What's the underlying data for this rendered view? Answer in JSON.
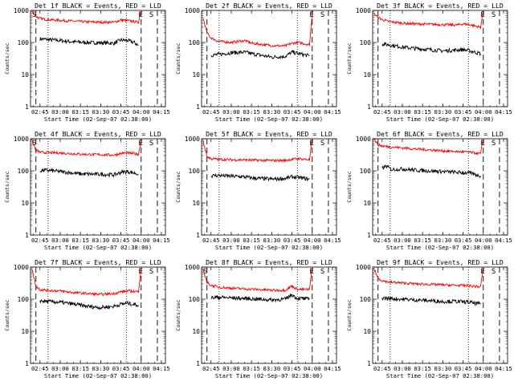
{
  "chart_data": [
    {
      "title": "Det 1f BLACK = Events, RED = LLD",
      "type": "line",
      "ylabel": "Counts/sec",
      "xlabel": "Start Time (02-Sep-07 02:38:00)",
      "ylim": [
        1,
        1000
      ],
      "yscale": "log",
      "xlim": [
        "02:38",
        "04:18"
      ],
      "x_ticks": [
        "02:45",
        "03:00",
        "03:15",
        "03:30",
        "03:45",
        "04:00",
        "04:15"
      ],
      "y_ticks": [
        "1",
        "10",
        "100",
        "1000"
      ],
      "markers": [
        "S",
        "E",
        "S"
      ],
      "dashed_x": [
        "02:42",
        "04:00",
        "04:12"
      ],
      "dotted_x": [
        "02:51",
        "03:49"
      ],
      "series": [
        {
          "name": "BLACK",
          "color": "#000000",
          "x": [
            "02:45",
            "02:50",
            "03:00",
            "03:10",
            "03:20",
            "03:30",
            "03:40",
            "03:45",
            "03:50",
            "03:55",
            "03:58"
          ],
          "values": [
            130,
            125,
            115,
            105,
            100,
            98,
            95,
            120,
            115,
            100,
            80
          ]
        },
        {
          "name": "RED",
          "color": "#ff0000",
          "x": [
            "02:39",
            "02:42",
            "02:45",
            "02:50",
            "03:00",
            "03:10",
            "03:20",
            "03:30",
            "03:40",
            "03:45",
            "03:50",
            "03:58",
            "04:00"
          ],
          "values": [
            1000,
            650,
            560,
            520,
            490,
            460,
            440,
            430,
            430,
            500,
            480,
            430,
            1000
          ]
        }
      ]
    },
    {
      "title": "Det 2f BLACK = Events, RED = LLD",
      "type": "line",
      "ylabel": "Counts/sec",
      "xlabel": "Start Time (02-Sep-07 02:38:00)",
      "ylim": [
        1,
        1000
      ],
      "yscale": "log",
      "xlim": [
        "02:38",
        "04:18"
      ],
      "x_ticks": [
        "02:45",
        "03:00",
        "03:15",
        "03:30",
        "03:45",
        "04:00",
        "04:15"
      ],
      "y_ticks": [
        "1",
        "10",
        "100",
        "1000"
      ],
      "markers": [
        "E",
        "S"
      ],
      "dashed_x": [
        "02:42",
        "04:00",
        "04:12"
      ],
      "dotted_x": [
        "02:51",
        "03:49"
      ],
      "series": [
        {
          "name": "BLACK",
          "color": "#000000",
          "x": [
            "02:45",
            "02:50",
            "03:00",
            "03:10",
            "03:15",
            "03:30",
            "03:40",
            "03:45",
            "03:50",
            "03:58"
          ],
          "values": [
            40,
            42,
            48,
            50,
            45,
            35,
            37,
            50,
            45,
            38
          ]
        },
        {
          "name": "RED",
          "color": "#ff0000",
          "x": [
            "02:39",
            "02:42",
            "02:45",
            "02:50",
            "03:00",
            "03:10",
            "03:15",
            "03:30",
            "03:40",
            "03:45",
            "03:50",
            "03:58",
            "04:00"
          ],
          "values": [
            600,
            200,
            140,
            110,
            100,
            115,
            95,
            80,
            78,
            95,
            100,
            85,
            800
          ]
        }
      ]
    },
    {
      "title": "Det 3f BLACK = Events, RED = LLD",
      "type": "line",
      "ylabel": "Counts/sec",
      "xlabel": "Start Time (02-Sep-07 02:38:00)",
      "ylim": [
        1,
        1000
      ],
      "yscale": "log",
      "xlim": [
        "02:38",
        "04:18"
      ],
      "x_ticks": [
        "02:45",
        "03:00",
        "03:15",
        "03:30",
        "03:45",
        "04:00",
        "04:15"
      ],
      "y_ticks": [
        "1",
        "10",
        "100",
        "1000"
      ],
      "markers": [
        "E",
        "S"
      ],
      "dashed_x": [
        "02:42",
        "04:00",
        "04:12"
      ],
      "dotted_x": [
        "02:51",
        "03:49"
      ],
      "series": [
        {
          "name": "BLACK",
          "color": "#000000",
          "x": [
            "02:45",
            "02:50",
            "03:00",
            "03:10",
            "03:20",
            "03:30",
            "03:40",
            "03:45",
            "03:50",
            "03:58"
          ],
          "values": [
            90,
            85,
            72,
            65,
            60,
            55,
            58,
            60,
            55,
            45
          ]
        },
        {
          "name": "RED",
          "color": "#ff0000",
          "x": [
            "02:39",
            "02:42",
            "02:45",
            "02:50",
            "03:00",
            "03:10",
            "03:20",
            "03:30",
            "03:40",
            "03:45",
            "03:50",
            "03:58",
            "04:00"
          ],
          "values": [
            800,
            600,
            520,
            450,
            400,
            380,
            370,
            360,
            350,
            380,
            360,
            300,
            900
          ]
        }
      ]
    },
    {
      "title": "Det 4f BLACK = Events, RED = LLD",
      "type": "line",
      "ylabel": "Counts/sec",
      "xlabel": "Start Time (02-Sep-07 02:38:00)",
      "ylim": [
        1,
        1000
      ],
      "yscale": "log",
      "xlim": [
        "02:38",
        "04:18"
      ],
      "x_ticks": [
        "02:45",
        "03:00",
        "03:15",
        "03:30",
        "03:45",
        "04:00",
        "04:15"
      ],
      "y_ticks": [
        "1",
        "10",
        "100",
        "1000"
      ],
      "markers": [
        "S",
        "E",
        "S"
      ],
      "dashed_x": [
        "02:42",
        "04:00",
        "04:12"
      ],
      "dotted_x": [
        "02:51",
        "03:49"
      ],
      "series": [
        {
          "name": "BLACK",
          "color": "#000000",
          "x": [
            "02:45",
            "02:50",
            "03:00",
            "03:10",
            "03:15",
            "03:30",
            "03:40",
            "03:45",
            "03:50",
            "03:58"
          ],
          "values": [
            100,
            105,
            95,
            85,
            80,
            78,
            75,
            90,
            95,
            80
          ]
        },
        {
          "name": "RED",
          "color": "#ff0000",
          "x": [
            "02:39",
            "02:42",
            "02:45",
            "02:50",
            "03:00",
            "03:10",
            "03:15",
            "03:30",
            "03:40",
            "03:45",
            "03:50",
            "03:58",
            "04:00"
          ],
          "values": [
            900,
            450,
            380,
            370,
            360,
            340,
            330,
            320,
            310,
            350,
            360,
            330,
            900
          ]
        }
      ]
    },
    {
      "title": "Det 5f BLACK = Events, RED = LLD",
      "type": "line",
      "ylabel": "Counts/sec",
      "xlabel": "Start Time (02-Sep-07 02:38:00)",
      "ylim": [
        1,
        1000
      ],
      "yscale": "log",
      "xlim": [
        "02:38",
        "04:18"
      ],
      "x_ticks": [
        "02:45",
        "03:00",
        "03:15",
        "03:30",
        "03:45",
        "04:00",
        "04:15"
      ],
      "y_ticks": [
        "1",
        "10",
        "100",
        "1000"
      ],
      "markers": [
        "E",
        "S"
      ],
      "dashed_x": [
        "02:42",
        "04:00",
        "04:12"
      ],
      "dotted_x": [
        "02:51",
        "03:49"
      ],
      "series": [
        {
          "name": "BLACK",
          "color": "#000000",
          "x": [
            "02:45",
            "02:50",
            "03:00",
            "03:10",
            "03:15",
            "03:30",
            "03:40",
            "03:45",
            "03:50",
            "03:58"
          ],
          "values": [
            70,
            72,
            68,
            65,
            60,
            55,
            58,
            65,
            62,
            55
          ]
        },
        {
          "name": "RED",
          "color": "#ff0000",
          "x": [
            "02:39",
            "02:42",
            "02:45",
            "02:50",
            "03:00",
            "03:10",
            "03:15",
            "03:30",
            "03:40",
            "03:45",
            "03:50",
            "03:58",
            "04:00"
          ],
          "values": [
            900,
            280,
            240,
            230,
            220,
            220,
            215,
            210,
            210,
            230,
            240,
            220,
            1000
          ]
        }
      ]
    },
    {
      "title": "Det 6f BLACK = Events, RED = LLD",
      "type": "line",
      "ylabel": "Counts/sec",
      "xlabel": "Start Time (02-Sep-07 02:38:00)",
      "ylim": [
        1,
        1000
      ],
      "yscale": "log",
      "xlim": [
        "02:38",
        "04:18"
      ],
      "x_ticks": [
        "02:45",
        "03:00",
        "03:15",
        "03:30",
        "03:45",
        "04:00",
        "04:15"
      ],
      "y_ticks": [
        "1",
        "10",
        "100",
        "1000"
      ],
      "markers": [
        "E",
        "S"
      ],
      "dashed_x": [
        "02:42",
        "04:00",
        "04:12"
      ],
      "dotted_x": [
        "02:51",
        "03:49"
      ],
      "series": [
        {
          "name": "BLACK",
          "color": "#000000",
          "x": [
            "02:45",
            "02:48",
            "02:52",
            "03:00",
            "03:10",
            "03:20",
            "03:30",
            "03:40",
            "03:50",
            "03:58"
          ],
          "values": [
            120,
            140,
            110,
            115,
            105,
            100,
            95,
            90,
            85,
            70
          ]
        },
        {
          "name": "RED",
          "color": "#ff0000",
          "x": [
            "02:39",
            "02:42",
            "02:45",
            "02:50",
            "03:00",
            "03:10",
            "03:20",
            "03:30",
            "03:40",
            "03:50",
            "03:58",
            "04:00"
          ],
          "values": [
            1000,
            650,
            600,
            560,
            520,
            480,
            450,
            420,
            400,
            380,
            340,
            1000
          ]
        }
      ]
    },
    {
      "title": "Det 7f BLACK = Events, RED = LLD",
      "type": "line",
      "ylabel": "Counts/sec",
      "xlabel": "Start Time (02-Sep-07 02:38:00)",
      "ylim": [
        1,
        1000
      ],
      "yscale": "log",
      "xlim": [
        "02:38",
        "04:18"
      ],
      "x_ticks": [
        "02:45",
        "03:00",
        "03:15",
        "03:30",
        "03:45",
        "04:00",
        "04:15"
      ],
      "y_ticks": [
        "1",
        "10",
        "100",
        "1000"
      ],
      "markers": [
        "E",
        "S"
      ],
      "dashed_x": [
        "02:42",
        "04:00",
        "04:12"
      ],
      "dotted_x": [
        "02:51",
        "03:49"
      ],
      "series": [
        {
          "name": "BLACK",
          "color": "#000000",
          "x": [
            "02:45",
            "02:50",
            "03:00",
            "03:10",
            "03:20",
            "03:30",
            "03:40",
            "03:45",
            "03:50",
            "03:58"
          ],
          "values": [
            90,
            85,
            80,
            70,
            60,
            55,
            60,
            70,
            75,
            65
          ]
        },
        {
          "name": "RED",
          "color": "#ff0000",
          "x": [
            "02:39",
            "02:42",
            "02:45",
            "02:50",
            "03:00",
            "03:10",
            "03:20",
            "03:30",
            "03:40",
            "03:45",
            "03:50",
            "03:58",
            "04:00"
          ],
          "values": [
            900,
            250,
            200,
            190,
            180,
            160,
            150,
            140,
            150,
            170,
            180,
            170,
            1000
          ]
        }
      ]
    },
    {
      "title": "Det 8f BLACK = Events, RED = LLD",
      "type": "line",
      "ylabel": "Counts/sec",
      "xlabel": "Start Time (02-Sep-07 02:38:00)",
      "ylim": [
        1,
        1000
      ],
      "yscale": "log",
      "xlim": [
        "02:38",
        "04:18"
      ],
      "x_ticks": [
        "02:45",
        "03:00",
        "03:15",
        "03:30",
        "03:45",
        "04:00",
        "04:15"
      ],
      "y_ticks": [
        "1",
        "10",
        "100",
        "1000"
      ],
      "markers": [
        "S",
        "E",
        "S"
      ],
      "dashed_x": [
        "02:42",
        "04:00",
        "04:12"
      ],
      "dotted_x": [
        "02:51",
        "03:49"
      ],
      "series": [
        {
          "name": "BLACK",
          "color": "#000000",
          "x": [
            "02:45",
            "02:50",
            "03:00",
            "03:10",
            "03:20",
            "03:30",
            "03:40",
            "03:45",
            "03:48",
            "03:52",
            "03:58"
          ],
          "values": [
            110,
            115,
            110,
            105,
            100,
            95,
            100,
            140,
            110,
            105,
            100
          ]
        },
        {
          "name": "RED",
          "color": "#ff0000",
          "x": [
            "02:39",
            "02:42",
            "02:45",
            "02:50",
            "03:00",
            "03:10",
            "03:20",
            "03:30",
            "03:40",
            "03:45",
            "03:48",
            "03:52",
            "03:58",
            "04:00"
          ],
          "values": [
            900,
            330,
            270,
            240,
            220,
            210,
            200,
            190,
            190,
            260,
            210,
            200,
            200,
            1000
          ]
        }
      ]
    },
    {
      "title": "Det 9f BLACK = Events, RED = LLD",
      "type": "line",
      "ylabel": "Counts/sec",
      "xlabel": "Start Time (02-Sep-07 02:38:00)",
      "ylim": [
        1,
        1000
      ],
      "yscale": "log",
      "xlim": [
        "02:38",
        "04:18"
      ],
      "x_ticks": [
        "02:45",
        "03:00",
        "03:15",
        "03:30",
        "03:45",
        "04:00",
        "04:15"
      ],
      "y_ticks": [
        "1",
        "10",
        "100",
        "1000"
      ],
      "markers": [
        "E",
        "S"
      ],
      "dashed_x": [
        "02:42",
        "04:00",
        "04:12"
      ],
      "dotted_x": [
        "02:51",
        "03:49"
      ],
      "series": [
        {
          "name": "BLACK",
          "color": "#000000",
          "x": [
            "02:45",
            "02:50",
            "03:00",
            "03:10",
            "03:20",
            "03:30",
            "03:40",
            "03:50",
            "03:58"
          ],
          "values": [
            110,
            105,
            100,
            95,
            90,
            85,
            85,
            80,
            70
          ]
        },
        {
          "name": "RED",
          "color": "#ff0000",
          "x": [
            "02:39",
            "02:42",
            "02:45",
            "02:50",
            "03:00",
            "03:10",
            "03:20",
            "03:30",
            "03:40",
            "03:50",
            "03:58",
            "04:00"
          ],
          "values": [
            900,
            450,
            380,
            340,
            320,
            300,
            290,
            280,
            270,
            260,
            240,
            1000
          ]
        }
      ]
    }
  ]
}
